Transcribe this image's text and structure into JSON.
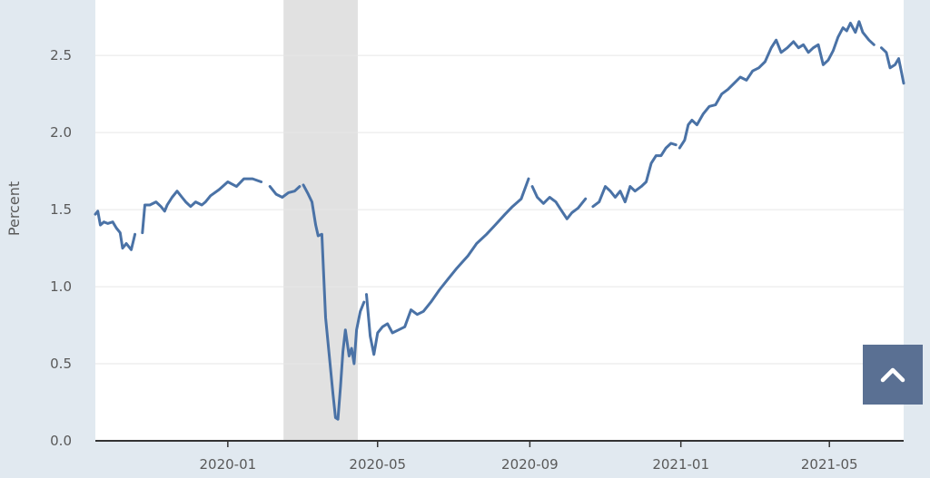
{
  "chart_data": {
    "type": "line",
    "title": "",
    "xlabel": "",
    "ylabel": "Percent",
    "ylim": [
      0,
      2.86
    ],
    "xlim": [
      "2019-09-16",
      "2021-06-30"
    ],
    "grid": true,
    "line_color": "#4a72a6",
    "recession_shade": {
      "start": "2020-02-15",
      "end": "2020-04-15",
      "color": "#e1e1e1"
    },
    "y_ticks": [
      "0.0",
      "0.5",
      "1.0",
      "1.5",
      "2.0",
      "2.5"
    ],
    "x_ticks": [
      {
        "date": "2020-01-01",
        "label": "2020-01"
      },
      {
        "date": "2020-05-01",
        "label": "2020-05"
      },
      {
        "date": "2020-09-01",
        "label": "2020-09"
      },
      {
        "date": "2021-01-01",
        "label": "2021-01"
      },
      {
        "date": "2021-05-01",
        "label": "2021-05"
      }
    ],
    "series": [
      {
        "segments": [
          [
            [
              "2019-09-16",
              1.47
            ],
            [
              "2019-09-18",
              1.49
            ],
            [
              "2019-09-20",
              1.4
            ],
            [
              "2019-09-23",
              1.42
            ],
            [
              "2019-09-26",
              1.41
            ],
            [
              "2019-09-30",
              1.42
            ],
            [
              "2019-10-03",
              1.38
            ],
            [
              "2019-10-06",
              1.35
            ],
            [
              "2019-10-08",
              1.25
            ],
            [
              "2019-10-11",
              1.28
            ],
            [
              "2019-10-15",
              1.24
            ],
            [
              "2019-10-18",
              1.34
            ]
          ],
          [
            [
              "2019-10-24",
              1.35
            ],
            [
              "2019-10-26",
              1.53
            ],
            [
              "2019-10-30",
              1.53
            ],
            [
              "2019-11-04",
              1.55
            ],
            [
              "2019-11-08",
              1.52
            ],
            [
              "2019-11-11",
              1.49
            ],
            [
              "2019-11-13",
              1.53
            ],
            [
              "2019-11-17",
              1.58
            ],
            [
              "2019-11-21",
              1.62
            ],
            [
              "2019-11-25",
              1.58
            ],
            [
              "2019-11-28",
              1.55
            ],
            [
              "2019-12-02",
              1.52
            ],
            [
              "2019-12-06",
              1.55
            ],
            [
              "2019-12-11",
              1.53
            ],
            [
              "2019-12-14",
              1.55
            ],
            [
              "2019-12-18",
              1.59
            ],
            [
              "2019-12-25",
              1.63
            ],
            [
              "2020-01-01",
              1.68
            ],
            [
              "2020-01-08",
              1.65
            ],
            [
              "2020-01-14",
              1.7
            ],
            [
              "2020-01-21",
              1.7
            ],
            [
              "2020-01-28",
              1.68
            ]
          ],
          [
            [
              "2020-02-04",
              1.65
            ],
            [
              "2020-02-09",
              1.6
            ],
            [
              "2020-02-14",
              1.58
            ],
            [
              "2020-02-19",
              1.61
            ],
            [
              "2020-02-24",
              1.62
            ],
            [
              "2020-02-28",
              1.65
            ]
          ],
          [
            [
              "2020-03-02",
              1.66
            ],
            [
              "2020-03-06",
              1.6
            ],
            [
              "2020-03-09",
              1.55
            ],
            [
              "2020-03-12",
              1.4
            ],
            [
              "2020-03-14",
              1.33
            ],
            [
              "2020-03-17",
              1.34
            ],
            [
              "2020-03-20",
              0.8
            ],
            [
              "2020-03-23",
              0.55
            ],
            [
              "2020-03-26",
              0.3
            ],
            [
              "2020-03-28",
              0.15
            ],
            [
              "2020-03-30",
              0.14
            ],
            [
              "2020-04-01",
              0.35
            ],
            [
              "2020-04-03",
              0.58
            ],
            [
              "2020-04-05",
              0.72
            ],
            [
              "2020-04-08",
              0.55
            ],
            [
              "2020-04-10",
              0.6
            ],
            [
              "2020-04-12",
              0.5
            ],
            [
              "2020-04-14",
              0.72
            ],
            [
              "2020-04-17",
              0.84
            ],
            [
              "2020-04-20",
              0.9
            ]
          ],
          [
            [
              "2020-04-22",
              0.95
            ],
            [
              "2020-04-25",
              0.68
            ],
            [
              "2020-04-28",
              0.56
            ],
            [
              "2020-05-01",
              0.7
            ],
            [
              "2020-05-05",
              0.74
            ],
            [
              "2020-05-09",
              0.76
            ],
            [
              "2020-05-13",
              0.7
            ],
            [
              "2020-05-18",
              0.72
            ],
            [
              "2020-05-23",
              0.74
            ],
            [
              "2020-05-28",
              0.85
            ],
            [
              "2020-06-02",
              0.82
            ],
            [
              "2020-06-07",
              0.84
            ],
            [
              "2020-06-13",
              0.9
            ],
            [
              "2020-06-20",
              0.98
            ],
            [
              "2020-06-27",
              1.05
            ],
            [
              "2020-07-04",
              1.12
            ],
            [
              "2020-07-13",
              1.2
            ],
            [
              "2020-07-20",
              1.28
            ],
            [
              "2020-07-28",
              1.34
            ],
            [
              "2020-08-04",
              1.4
            ],
            [
              "2020-08-12",
              1.47
            ],
            [
              "2020-08-18",
              1.52
            ],
            [
              "2020-08-25",
              1.57
            ],
            [
              "2020-08-31",
              1.7
            ]
          ],
          [
            [
              "2020-09-03",
              1.65
            ],
            [
              "2020-09-07",
              1.58
            ],
            [
              "2020-09-12",
              1.54
            ],
            [
              "2020-09-17",
              1.58
            ],
            [
              "2020-09-22",
              1.55
            ],
            [
              "2020-09-26",
              1.5
            ],
            [
              "2020-10-01",
              1.44
            ],
            [
              "2020-10-05",
              1.48
            ],
            [
              "2020-10-10",
              1.51
            ],
            [
              "2020-10-16",
              1.57
            ]
          ],
          [
            [
              "2020-10-22",
              1.52
            ],
            [
              "2020-10-27",
              1.55
            ],
            [
              "2020-11-01",
              1.65
            ],
            [
              "2020-11-05",
              1.62
            ],
            [
              "2020-11-09",
              1.58
            ],
            [
              "2020-11-13",
              1.62
            ],
            [
              "2020-11-17",
              1.55
            ],
            [
              "2020-11-21",
              1.65
            ],
            [
              "2020-11-25",
              1.62
            ],
            [
              "2020-11-30",
              1.65
            ],
            [
              "2020-12-04",
              1.68
            ],
            [
              "2020-12-08",
              1.8
            ],
            [
              "2020-12-12",
              1.85
            ],
            [
              "2020-12-16",
              1.85
            ],
            [
              "2020-12-20",
              1.9
            ],
            [
              "2020-12-24",
              1.93
            ],
            [
              "2020-12-28",
              1.92
            ]
          ],
          [
            [
              "2020-12-31",
              1.9
            ],
            [
              "2021-01-04",
              1.95
            ],
            [
              "2021-01-07",
              2.05
            ],
            [
              "2021-01-10",
              2.08
            ],
            [
              "2021-01-14",
              2.05
            ],
            [
              "2021-01-19",
              2.12
            ],
            [
              "2021-01-24",
              2.17
            ],
            [
              "2021-01-29",
              2.18
            ],
            [
              "2021-02-03",
              2.25
            ],
            [
              "2021-02-08",
              2.28
            ],
            [
              "2021-02-13",
              2.32
            ],
            [
              "2021-02-18",
              2.36
            ],
            [
              "2021-02-23",
              2.34
            ],
            [
              "2021-02-28",
              2.4
            ],
            [
              "2021-03-05",
              2.42
            ],
            [
              "2021-03-10",
              2.46
            ],
            [
              "2021-03-15",
              2.55
            ],
            [
              "2021-03-19",
              2.6
            ],
            [
              "2021-03-23",
              2.52
            ],
            [
              "2021-03-28",
              2.55
            ],
            [
              "2021-04-02",
              2.59
            ],
            [
              "2021-04-06",
              2.55
            ],
            [
              "2021-04-10",
              2.57
            ],
            [
              "2021-04-14",
              2.52
            ],
            [
              "2021-04-18",
              2.55
            ],
            [
              "2021-04-22",
              2.57
            ],
            [
              "2021-04-26",
              2.44
            ],
            [
              "2021-04-30",
              2.47
            ],
            [
              "2021-05-04",
              2.53
            ],
            [
              "2021-05-08",
              2.62
            ],
            [
              "2021-05-12",
              2.68
            ],
            [
              "2021-05-15",
              2.66
            ],
            [
              "2021-05-18",
              2.71
            ],
            [
              "2021-05-22",
              2.65
            ],
            [
              "2021-05-25",
              2.72
            ],
            [
              "2021-05-28",
              2.65
            ],
            [
              "2021-06-02",
              2.6
            ],
            [
              "2021-06-06",
              2.57
            ]
          ],
          [
            [
              "2021-06-12",
              2.55
            ],
            [
              "2021-06-16",
              2.52
            ],
            [
              "2021-06-19",
              2.42
            ],
            [
              "2021-06-23",
              2.44
            ],
            [
              "2021-06-26",
              2.48
            ],
            [
              "2021-06-28",
              2.4
            ],
            [
              "2021-06-30",
              2.32
            ]
          ]
        ]
      }
    ]
  },
  "ui": {
    "scroll_top_icon": "chevron-up-icon"
  }
}
